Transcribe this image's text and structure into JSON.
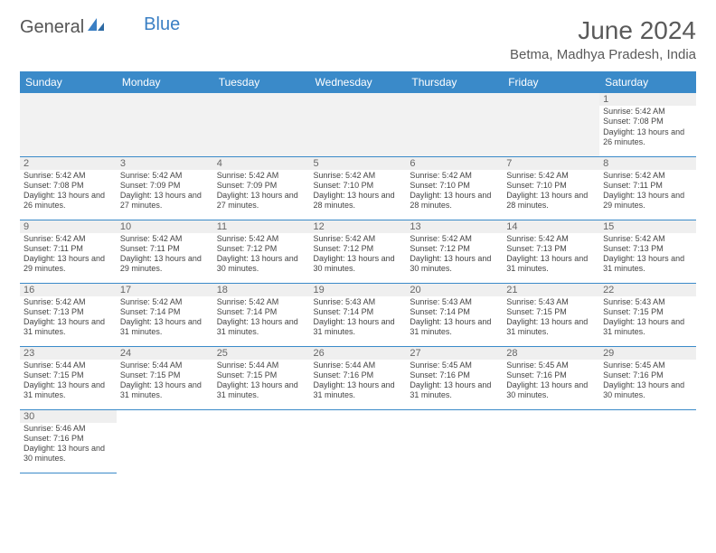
{
  "logo": {
    "part1": "General",
    "part2": "Blue"
  },
  "title": "June 2024",
  "location": "Betma, Madhya Pradesh, India",
  "header_bg": "#3a8ac9",
  "weekdays": [
    "Sunday",
    "Monday",
    "Tuesday",
    "Wednesday",
    "Thursday",
    "Friday",
    "Saturday"
  ],
  "days": {
    "1": {
      "sunrise": "5:42 AM",
      "sunset": "7:08 PM",
      "daylight": "13 hours and 26 minutes."
    },
    "2": {
      "sunrise": "5:42 AM",
      "sunset": "7:08 PM",
      "daylight": "13 hours and 26 minutes."
    },
    "3": {
      "sunrise": "5:42 AM",
      "sunset": "7:09 PM",
      "daylight": "13 hours and 27 minutes."
    },
    "4": {
      "sunrise": "5:42 AM",
      "sunset": "7:09 PM",
      "daylight": "13 hours and 27 minutes."
    },
    "5": {
      "sunrise": "5:42 AM",
      "sunset": "7:10 PM",
      "daylight": "13 hours and 28 minutes."
    },
    "6": {
      "sunrise": "5:42 AM",
      "sunset": "7:10 PM",
      "daylight": "13 hours and 28 minutes."
    },
    "7": {
      "sunrise": "5:42 AM",
      "sunset": "7:10 PM",
      "daylight": "13 hours and 28 minutes."
    },
    "8": {
      "sunrise": "5:42 AM",
      "sunset": "7:11 PM",
      "daylight": "13 hours and 29 minutes."
    },
    "9": {
      "sunrise": "5:42 AM",
      "sunset": "7:11 PM",
      "daylight": "13 hours and 29 minutes."
    },
    "10": {
      "sunrise": "5:42 AM",
      "sunset": "7:11 PM",
      "daylight": "13 hours and 29 minutes."
    },
    "11": {
      "sunrise": "5:42 AM",
      "sunset": "7:12 PM",
      "daylight": "13 hours and 30 minutes."
    },
    "12": {
      "sunrise": "5:42 AM",
      "sunset": "7:12 PM",
      "daylight": "13 hours and 30 minutes."
    },
    "13": {
      "sunrise": "5:42 AM",
      "sunset": "7:12 PM",
      "daylight": "13 hours and 30 minutes."
    },
    "14": {
      "sunrise": "5:42 AM",
      "sunset": "7:13 PM",
      "daylight": "13 hours and 31 minutes."
    },
    "15": {
      "sunrise": "5:42 AM",
      "sunset": "7:13 PM",
      "daylight": "13 hours and 31 minutes."
    },
    "16": {
      "sunrise": "5:42 AM",
      "sunset": "7:13 PM",
      "daylight": "13 hours and 31 minutes."
    },
    "17": {
      "sunrise": "5:42 AM",
      "sunset": "7:14 PM",
      "daylight": "13 hours and 31 minutes."
    },
    "18": {
      "sunrise": "5:42 AM",
      "sunset": "7:14 PM",
      "daylight": "13 hours and 31 minutes."
    },
    "19": {
      "sunrise": "5:43 AM",
      "sunset": "7:14 PM",
      "daylight": "13 hours and 31 minutes."
    },
    "20": {
      "sunrise": "5:43 AM",
      "sunset": "7:14 PM",
      "daylight": "13 hours and 31 minutes."
    },
    "21": {
      "sunrise": "5:43 AM",
      "sunset": "7:15 PM",
      "daylight": "13 hours and 31 minutes."
    },
    "22": {
      "sunrise": "5:43 AM",
      "sunset": "7:15 PM",
      "daylight": "13 hours and 31 minutes."
    },
    "23": {
      "sunrise": "5:44 AM",
      "sunset": "7:15 PM",
      "daylight": "13 hours and 31 minutes."
    },
    "24": {
      "sunrise": "5:44 AM",
      "sunset": "7:15 PM",
      "daylight": "13 hours and 31 minutes."
    },
    "25": {
      "sunrise": "5:44 AM",
      "sunset": "7:15 PM",
      "daylight": "13 hours and 31 minutes."
    },
    "26": {
      "sunrise": "5:44 AM",
      "sunset": "7:16 PM",
      "daylight": "13 hours and 31 minutes."
    },
    "27": {
      "sunrise": "5:45 AM",
      "sunset": "7:16 PM",
      "daylight": "13 hours and 31 minutes."
    },
    "28": {
      "sunrise": "5:45 AM",
      "sunset": "7:16 PM",
      "daylight": "13 hours and 30 minutes."
    },
    "29": {
      "sunrise": "5:45 AM",
      "sunset": "7:16 PM",
      "daylight": "13 hours and 30 minutes."
    },
    "30": {
      "sunrise": "5:46 AM",
      "sunset": "7:16 PM",
      "daylight": "13 hours and 30 minutes."
    }
  },
  "labels": {
    "sunrise": "Sunrise: ",
    "sunset": "Sunset: ",
    "daylight": "Daylight: "
  },
  "grid": [
    [
      null,
      null,
      null,
      null,
      null,
      null,
      "1"
    ],
    [
      "2",
      "3",
      "4",
      "5",
      "6",
      "7",
      "8"
    ],
    [
      "9",
      "10",
      "11",
      "12",
      "13",
      "14",
      "15"
    ],
    [
      "16",
      "17",
      "18",
      "19",
      "20",
      "21",
      "22"
    ],
    [
      "23",
      "24",
      "25",
      "26",
      "27",
      "28",
      "29"
    ],
    [
      "30",
      null,
      null,
      null,
      null,
      null,
      null
    ]
  ]
}
